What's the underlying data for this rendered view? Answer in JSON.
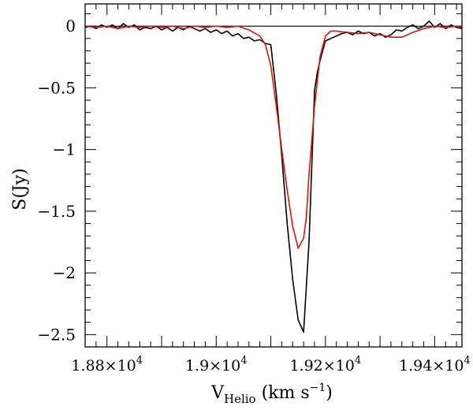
{
  "chart_data": {
    "type": "line",
    "title": "",
    "xlabel": {
      "main": "V",
      "sub": "Helio",
      "unit_pre": " (km  s",
      "unit_sup": "−1",
      "unit_post": ")"
    },
    "ylabel": "S(Jy)",
    "xlim": [
      18760,
      19450
    ],
    "ylim": [
      -2.6,
      0.18
    ],
    "x_ticks": [
      {
        "value": 18800,
        "mantissa": "1.88×10",
        "exp": "4"
      },
      {
        "value": 19000,
        "mantissa": "1.9×10",
        "exp": "4"
      },
      {
        "value": 19200,
        "mantissa": "1.92×10",
        "exp": "4"
      },
      {
        "value": 19400,
        "mantissa": "1.94×10",
        "exp": "4"
      }
    ],
    "y_ticks": [
      {
        "value": 0,
        "label": "0"
      },
      {
        "value": -0.5,
        "label": "−0.5"
      },
      {
        "value": -1,
        "label": "−1"
      },
      {
        "value": -1.5,
        "label": "−1.5"
      },
      {
        "value": -2,
        "label": "−2"
      },
      {
        "value": -2.5,
        "label": "−2.5"
      }
    ],
    "zero_line": 0,
    "grid": false,
    "series": [
      {
        "color": "#000000",
        "x": [
          18760,
          18770,
          18780,
          18790,
          18800,
          18810,
          18820,
          18830,
          18840,
          18850,
          18860,
          18870,
          18880,
          18890,
          18900,
          18910,
          18920,
          18930,
          18940,
          18950,
          18960,
          18970,
          18980,
          18990,
          19000,
          19010,
          19020,
          19030,
          19040,
          19050,
          19060,
          19070,
          19080,
          19090,
          19100,
          19110,
          19120,
          19130,
          19140,
          19150,
          19160,
          19170,
          19180,
          19185,
          19190,
          19200,
          19210,
          19220,
          19230,
          19240,
          19250,
          19260,
          19270,
          19280,
          19290,
          19300,
          19310,
          19320,
          19330,
          19340,
          19350,
          19360,
          19370,
          19380,
          19390,
          19400,
          19410,
          19420,
          19430,
          19440,
          19450
        ],
        "y": [
          -0.01,
          0.0,
          -0.02,
          0.01,
          -0.01,
          0.01,
          -0.02,
          0.02,
          -0.01,
          0.01,
          -0.03,
          -0.01,
          -0.02,
          0.0,
          -0.03,
          -0.01,
          -0.04,
          -0.01,
          -0.03,
          0.0,
          -0.02,
          -0.04,
          -0.02,
          -0.05,
          -0.03,
          -0.06,
          -0.04,
          -0.08,
          -0.06,
          -0.1,
          -0.09,
          -0.12,
          -0.11,
          -0.14,
          -0.15,
          -0.55,
          -1.05,
          -1.6,
          -2.05,
          -2.38,
          -2.48,
          -1.75,
          -0.52,
          -0.38,
          -0.28,
          -0.12,
          -0.1,
          -0.08,
          -0.06,
          -0.05,
          -0.07,
          -0.04,
          -0.06,
          -0.05,
          -0.08,
          -0.06,
          -0.09,
          -0.07,
          -0.03,
          -0.04,
          -0.01,
          0.01,
          -0.02,
          0.0,
          0.04,
          -0.01,
          0.02,
          -0.02,
          0.01,
          -0.01,
          -0.02
        ]
      },
      {
        "color": "#e01010",
        "x": [
          18760,
          18780,
          18800,
          18820,
          18840,
          18860,
          18880,
          18900,
          18920,
          18940,
          18960,
          18980,
          19000,
          19020,
          19040,
          19060,
          19080,
          19090,
          19100,
          19110,
          19120,
          19130,
          19140,
          19150,
          19160,
          19165,
          19170,
          19180,
          19190,
          19200,
          19210,
          19220,
          19240,
          19260,
          19280,
          19300,
          19320,
          19340,
          19360,
          19380,
          19400,
          19420,
          19440,
          19450
        ],
        "y": [
          0.0,
          -0.01,
          0.0,
          -0.02,
          0.0,
          -0.01,
          0.0,
          -0.01,
          0.0,
          -0.02,
          0.0,
          -0.01,
          0.0,
          -0.01,
          0.0,
          -0.03,
          -0.08,
          -0.15,
          -0.32,
          -0.65,
          -1.0,
          -1.33,
          -1.62,
          -1.8,
          -1.72,
          -1.55,
          -1.2,
          -0.65,
          -0.25,
          -0.08,
          -0.04,
          -0.04,
          -0.05,
          -0.06,
          -0.05,
          -0.07,
          -0.09,
          -0.09,
          -0.05,
          -0.02,
          0.0,
          -0.01,
          0.0,
          -0.01
        ]
      }
    ]
  }
}
